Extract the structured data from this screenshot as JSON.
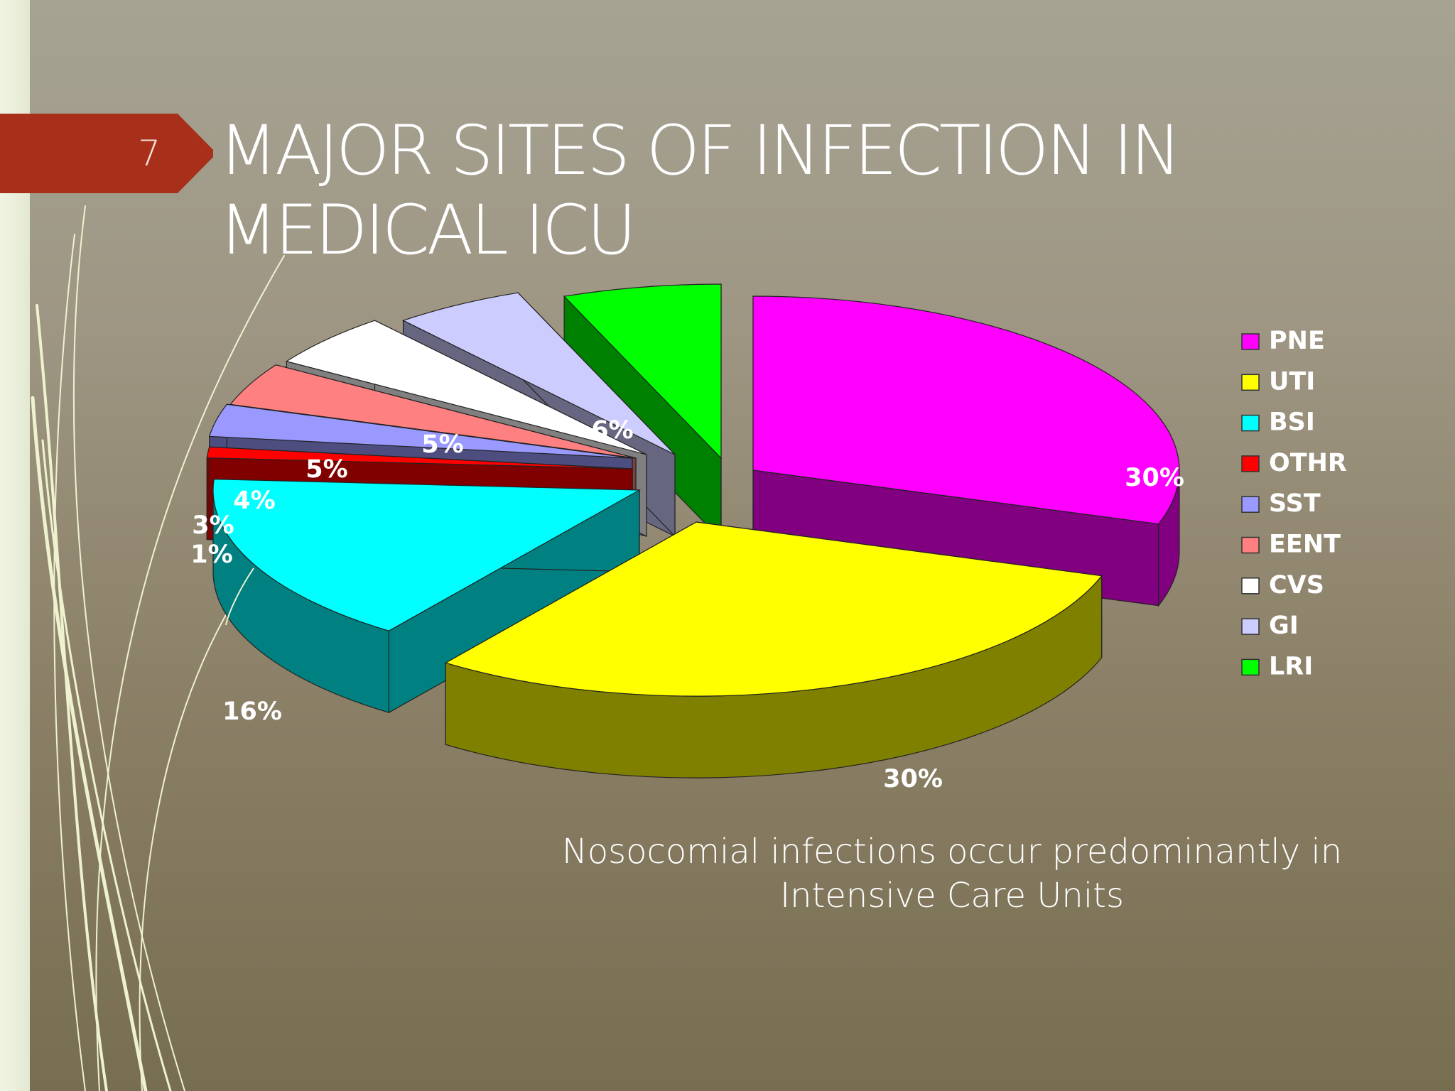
{
  "slide": {
    "number": "7",
    "title_lines": [
      "MAJOR SITES OF INFECTION IN",
      "MEDICAL ICU"
    ],
    "subtitle_lines": [
      "Nosocomial infections occur predominantly in",
      "Intensive Care Units"
    ]
  },
  "colors": {
    "number_tab": "#a8301a",
    "decorative_lines": "#eef2cf",
    "label_text": "#ffffff",
    "slice_outline": "#222222"
  },
  "chart_data": {
    "type": "pie",
    "three_d": true,
    "legend_position": "right",
    "categories": [
      "PNE",
      "UTI",
      "BSI",
      "OTHR",
      "SST",
      "EENT",
      "CVS",
      "GI",
      "LRI"
    ],
    "values": [
      30,
      30,
      16,
      1,
      3,
      4,
      5,
      5,
      6
    ],
    "data_labels": [
      "30%",
      "30%",
      "16%",
      "1%",
      "3%",
      "4%",
      "5%",
      "5%",
      "6%"
    ],
    "colors": [
      "#ff00ff",
      "#ffff00",
      "#00ffff",
      "#ff0000",
      "#9999ff",
      "#ff8080",
      "#ffffff",
      "#ccccff",
      "#00ff00"
    ],
    "side_colors": [
      "#800080",
      "#808000",
      "#008080",
      "#800000",
      "#4d4d80",
      "#804040",
      "#808080",
      "#666680",
      "#008000"
    ]
  }
}
